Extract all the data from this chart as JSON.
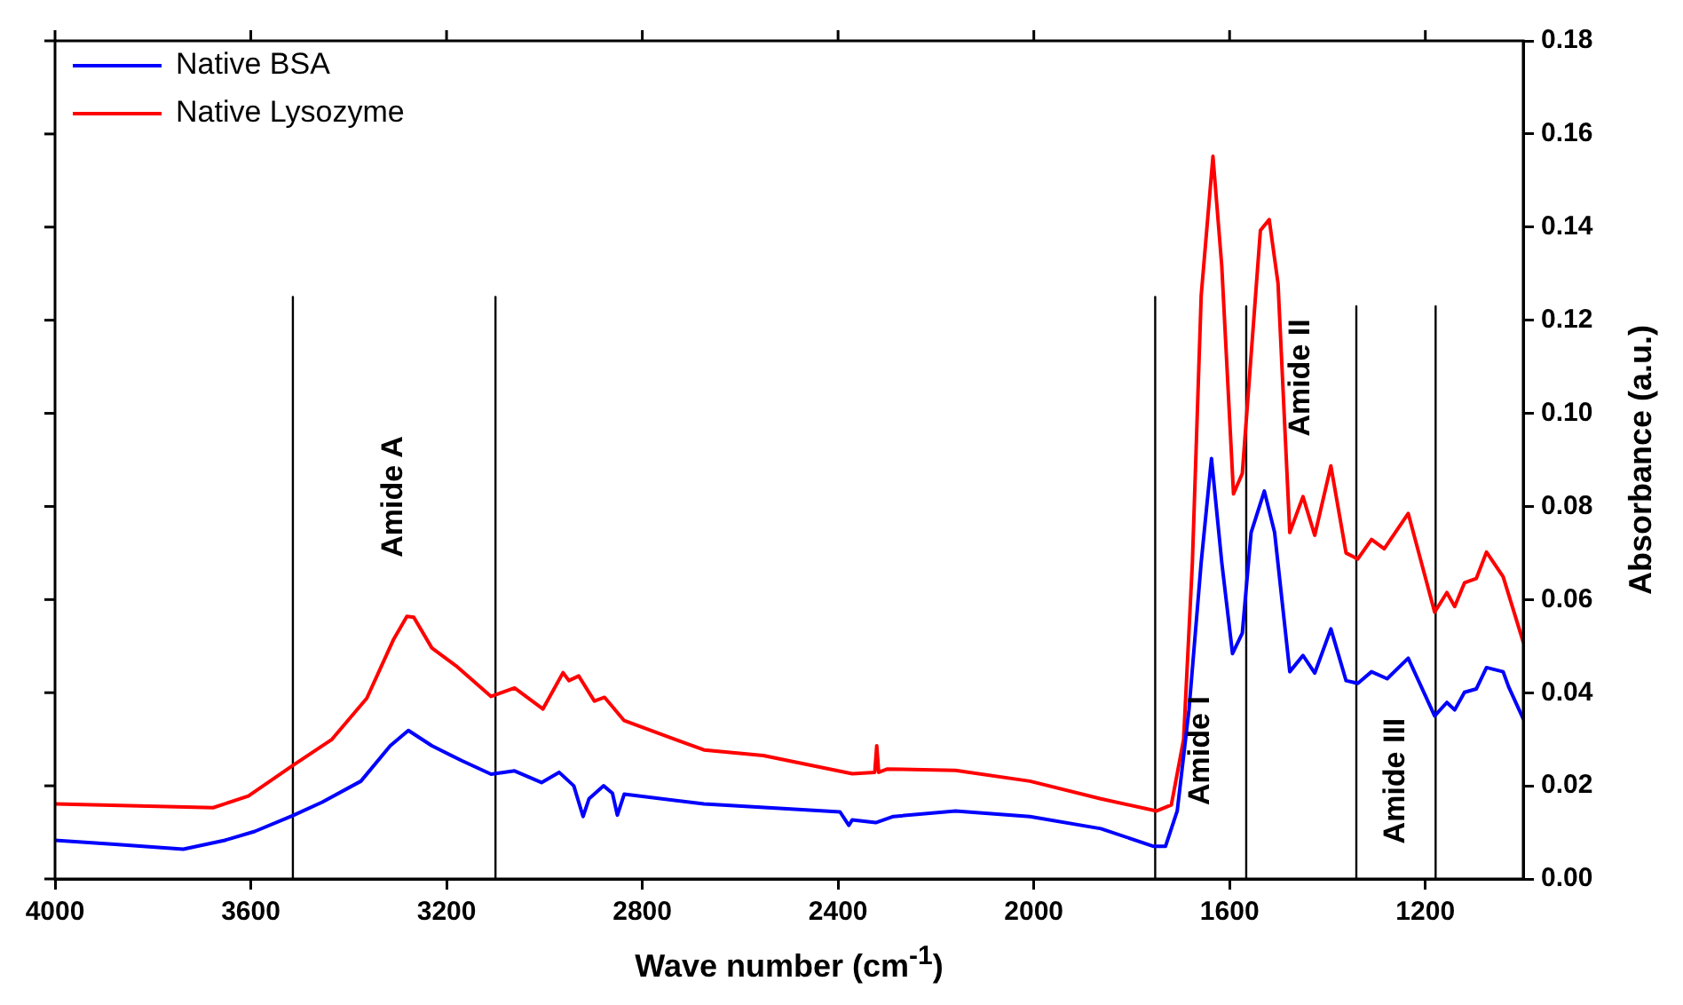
{
  "chart_data": {
    "type": "line",
    "xlabel": "Wave number (cm$^{-1}$)",
    "ylabel": "Absorbance (a.u.)",
    "xlim": [
      4000,
      1000
    ],
    "xticks": [
      4000,
      3600,
      3200,
      2800,
      2400,
      2000,
      1600,
      1200
    ],
    "ylim": [
      0,
      0.18
    ],
    "yticks": [
      {
        "value": 0,
        "label": "0.00"
      },
      {
        "value": 0.02,
        "label": "0.02"
      },
      {
        "value": 0.04,
        "label": "0.04"
      },
      {
        "value": 0.06,
        "label": "0.06"
      },
      {
        "value": 0.08,
        "label": "0.08"
      },
      {
        "value": 0.1,
        "label": "0.10"
      },
      {
        "value": 0.12,
        "label": "0.12"
      },
      {
        "value": 0.14,
        "label": "0.14"
      },
      {
        "value": 0.16,
        "label": "0.16"
      },
      {
        "value": 0.18,
        "label": "0.18"
      }
    ],
    "grid": false,
    "legend": "top left",
    "marker": "none",
    "line_style": "solid",
    "series": [
      {
        "name": "Native BSA",
        "color": "#0000ff",
        "x": [
          4000,
          3871,
          3738,
          3653,
          3592,
          3514,
          3454,
          3375,
          3315,
          3278,
          3230,
          3169,
          3109,
          3061,
          3006,
          2970,
          2940,
          2921,
          2909,
          2879,
          2861,
          2851,
          2837,
          2674,
          2396,
          2378,
          2371,
          2323,
          2287,
          2160,
          2008,
          1863,
          1755,
          1731,
          1707,
          1683,
          1658,
          1637,
          1616,
          1594,
          1574,
          1556,
          1529,
          1508,
          1477,
          1450,
          1426,
          1393,
          1362,
          1338,
          1310,
          1278,
          1235,
          1181,
          1156,
          1140,
          1120,
          1096,
          1075,
          1041,
          1030,
          1000
        ],
        "values": [
          0.0083,
          0.0074,
          0.0064,
          0.0083,
          0.0102,
          0.0136,
          0.0165,
          0.021,
          0.0286,
          0.0319,
          0.0286,
          0.0254,
          0.0225,
          0.0232,
          0.0207,
          0.0229,
          0.02,
          0.0134,
          0.0172,
          0.02,
          0.0184,
          0.0137,
          0.0182,
          0.0161,
          0.0144,
          0.0115,
          0.0127,
          0.0121,
          0.0134,
          0.0146,
          0.0134,
          0.0108,
          0.007,
          0.007,
          0.0146,
          0.0363,
          0.068,
          0.0903,
          0.068,
          0.0484,
          0.0528,
          0.0744,
          0.0833,
          0.0744,
          0.0445,
          0.048,
          0.0442,
          0.0537,
          0.0426,
          0.042,
          0.0445,
          0.043,
          0.0474,
          0.035,
          0.0379,
          0.0363,
          0.0401,
          0.0408,
          0.0454,
          0.0445,
          0.0413,
          0.0344
        ]
      },
      {
        "name": "Native Lysozyme",
        "color": "#ff0000",
        "x": [
          4000,
          3677,
          3605,
          3514,
          3435,
          3363,
          3308,
          3281,
          3267,
          3230,
          3181,
          3109,
          3061,
          3003,
          2962,
          2950,
          2930,
          2898,
          2877,
          2837,
          2674,
          2553,
          2371,
          2325,
          2321,
          2317,
          2299,
          2160,
          2008,
          1863,
          1749,
          1719,
          1694,
          1676,
          1658,
          1634,
          1616,
          1592,
          1574,
          1537,
          1519,
          1501,
          1477,
          1450,
          1426,
          1393,
          1362,
          1338,
          1310,
          1284,
          1235,
          1181,
          1156,
          1140,
          1120,
          1096,
          1075,
          1041,
          1000
        ],
        "values": [
          0.0161,
          0.0153,
          0.0178,
          0.0244,
          0.0299,
          0.0388,
          0.0515,
          0.0564,
          0.0562,
          0.0496,
          0.0458,
          0.0392,
          0.041,
          0.0365,
          0.0443,
          0.0426,
          0.0436,
          0.0382,
          0.039,
          0.034,
          0.0277,
          0.0265,
          0.0226,
          0.0229,
          0.0286,
          0.0229,
          0.0236,
          0.0233,
          0.021,
          0.0172,
          0.0146,
          0.0159,
          0.0299,
          0.068,
          0.1253,
          0.1552,
          0.1317,
          0.0827,
          0.0871,
          0.1393,
          0.1416,
          0.1279,
          0.0744,
          0.0821,
          0.0738,
          0.0887,
          0.07,
          0.0687,
          0.0729,
          0.0709,
          0.0785,
          0.0573,
          0.0615,
          0.0585,
          0.0636,
          0.0645,
          0.0702,
          0.0649,
          0.0509
        ]
      },
      {
        "color": "#000000",
        "x": [
          3514,
          3514
        ],
        "values": [
          0,
          0.125
        ]
      },
      {
        "color": "#000000",
        "x": [
          3100,
          3100
        ],
        "values": [
          0,
          0.125
        ]
      },
      {
        "color": "#000000",
        "x": [
          1752,
          1752
        ],
        "values": [
          0,
          0.125
        ]
      },
      {
        "color": "#000000",
        "x": [
          1566,
          1566
        ],
        "values": [
          0,
          0.123
        ]
      },
      {
        "color": "#000000",
        "x": [
          1341,
          1341
        ],
        "values": [
          0,
          0.123
        ]
      },
      {
        "color": "#000000",
        "x": [
          1179,
          1179
        ],
        "values": [
          0,
          0.123
        ]
      }
    ],
    "annotations": [
      "Amide A",
      "Amide I",
      "Amide II",
      "Amide III"
    ]
  }
}
